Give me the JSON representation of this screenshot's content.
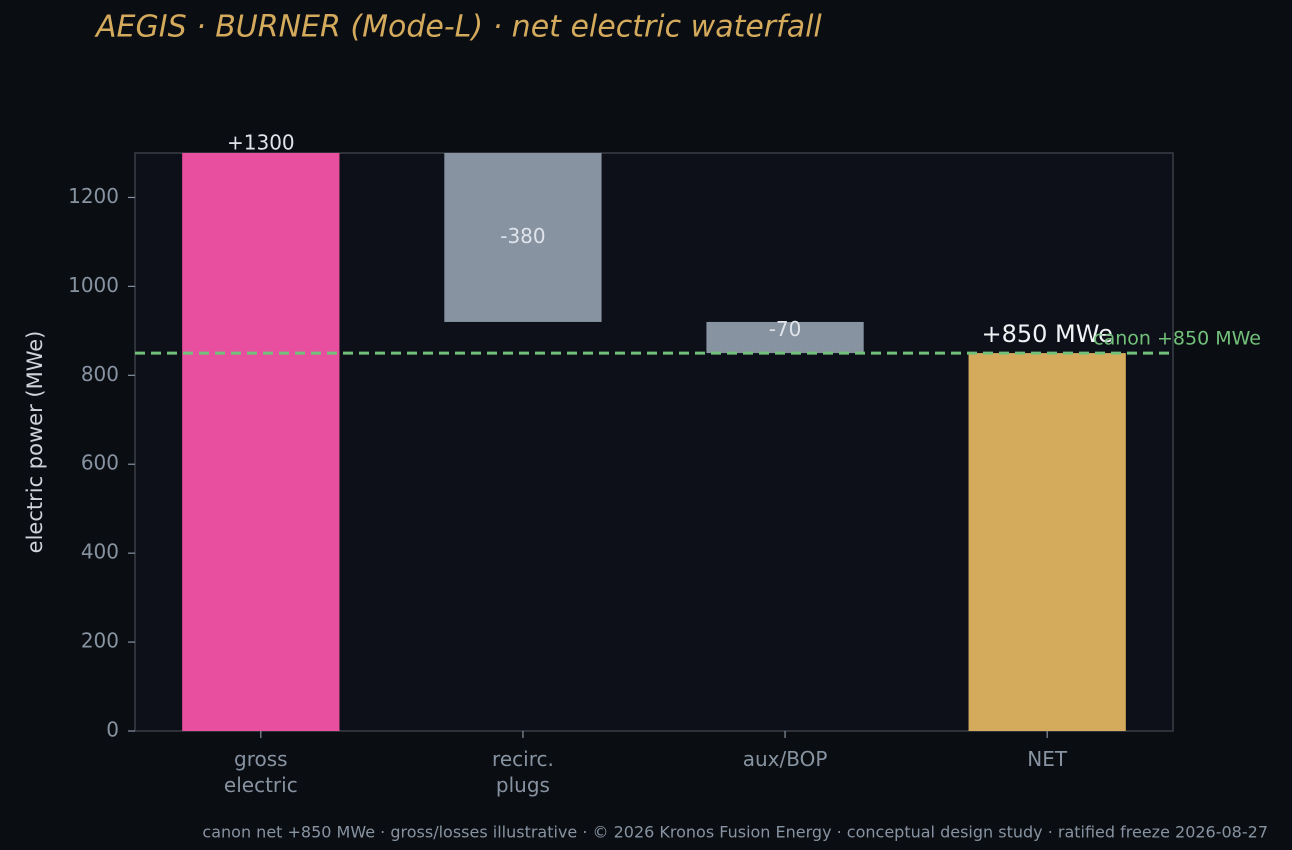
{
  "chart_data": {
    "type": "waterfall",
    "title": "AEGIS · BURNER (Mode-L)  ·  net electric waterfall",
    "y_label": "electric power (MWe)",
    "categories": [
      "gross\nelectric",
      "recirc.\nplugs",
      "aux/BOP",
      "NET"
    ],
    "measure": [
      "absolute",
      "relative",
      "relative",
      "total"
    ],
    "values": [
      1300,
      -380,
      -70,
      850
    ],
    "value_labels": [
      "+1300",
      "-380",
      "-70",
      "+850 MWe"
    ],
    "colors": [
      "#e8509f",
      "#8793a1",
      "#8793a1",
      "#d4aa5c"
    ],
    "ylim": [
      0,
      1300
    ],
    "yticks": [
      0,
      200,
      400,
      600,
      800,
      1000,
      1200
    ],
    "reference_line": {
      "value": 850,
      "label": "canon +850 MWe",
      "color": "#72c07a"
    },
    "footer": "canon net +850 MWe · gross/losses illustrative · © 2026 Kronos Fusion Energy · conceptual design study · ratified freeze 2026-08-27"
  }
}
